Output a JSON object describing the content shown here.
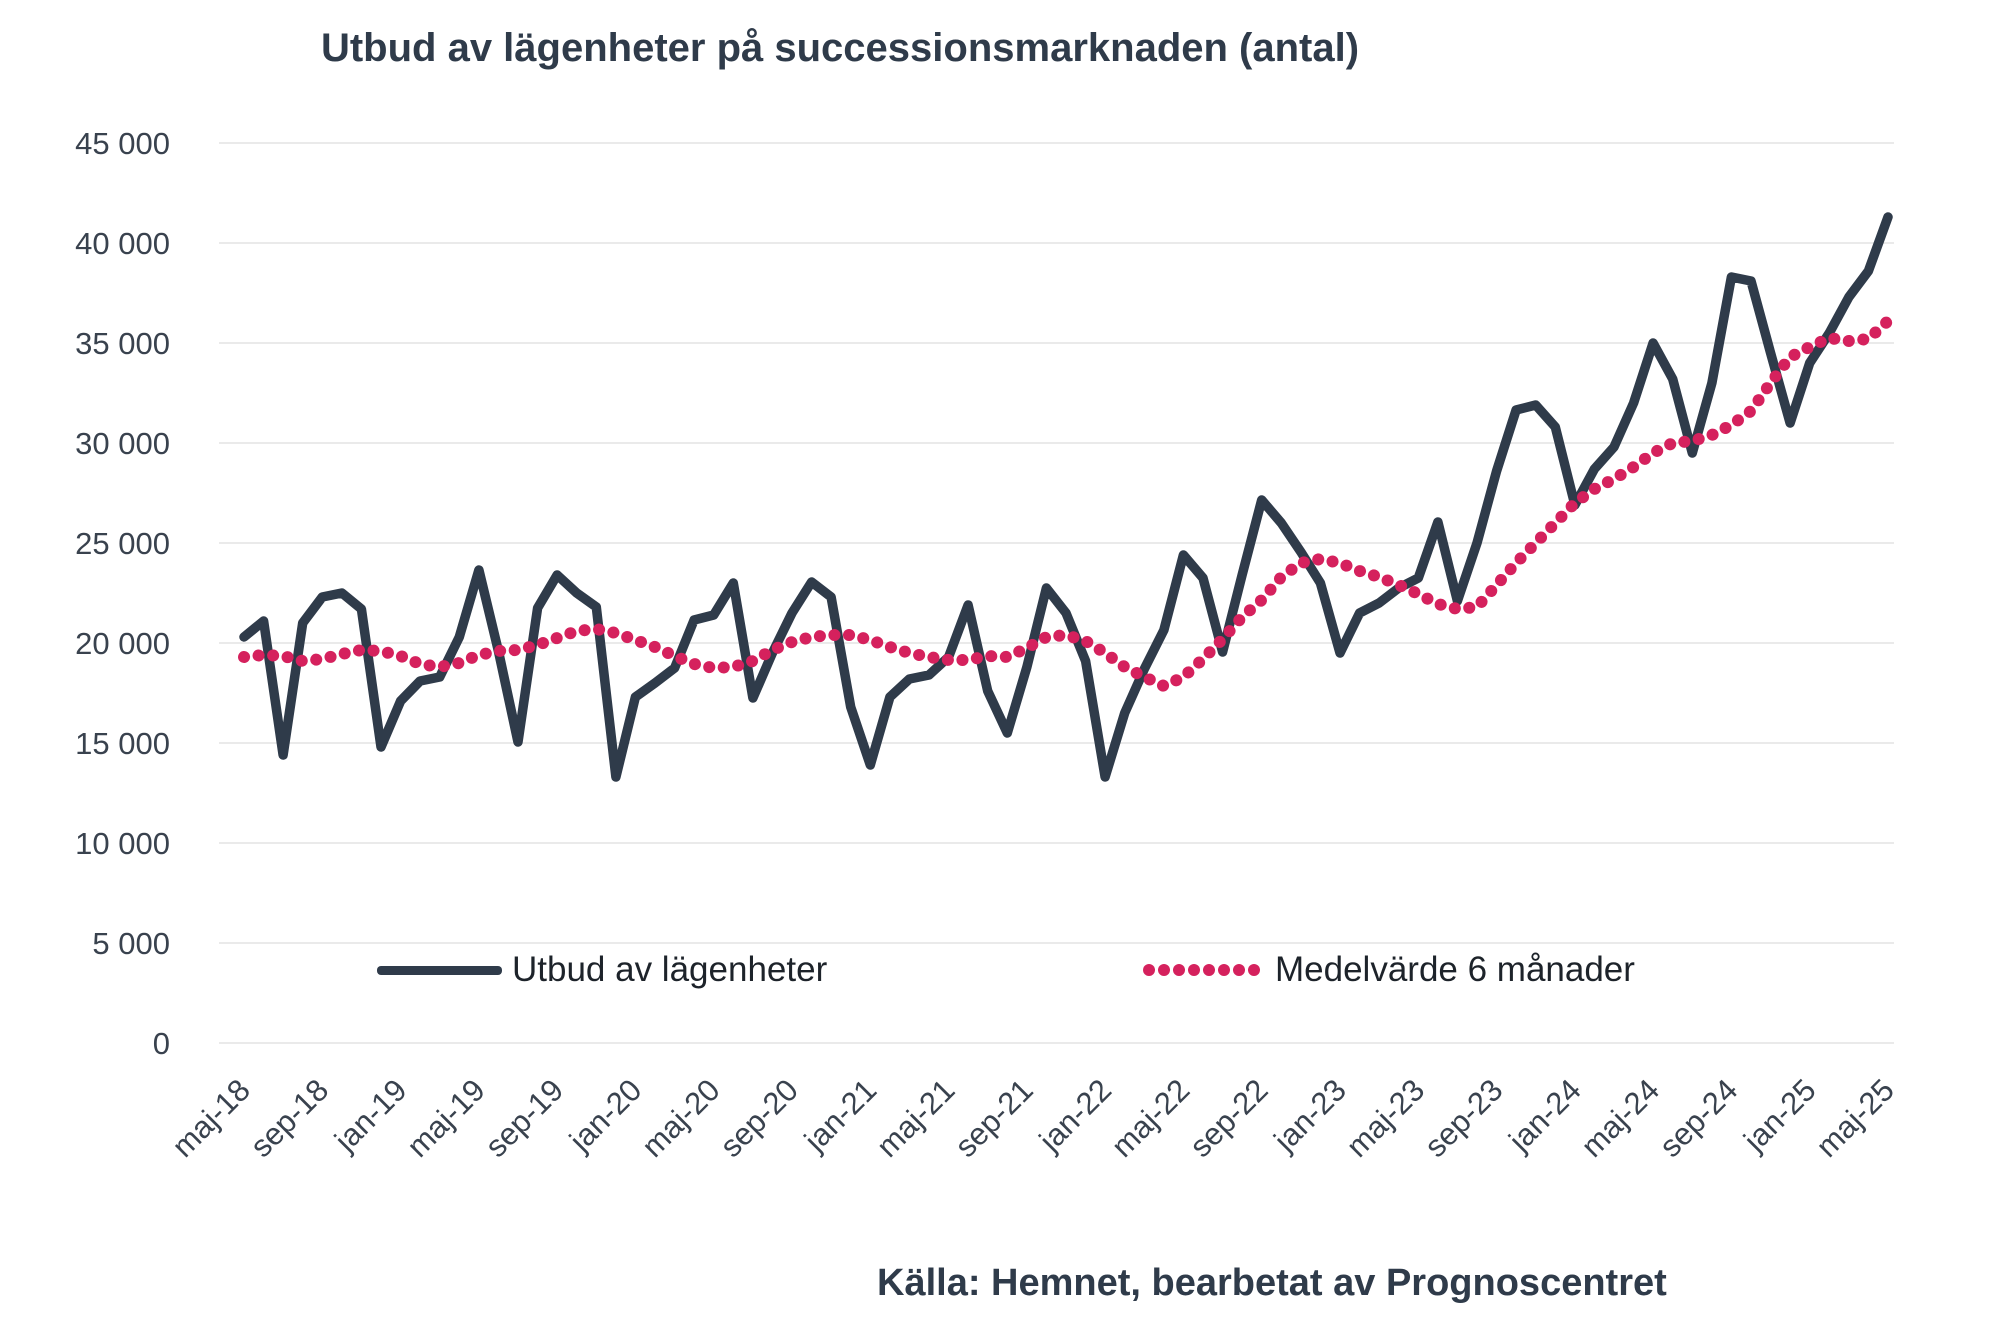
{
  "title": "Utbud av lägenheter på successionsmarknaden (antal)",
  "source": "Källa: Hemnet, bearbetat av Prognoscentret",
  "legend": [
    {
      "label": "Utbud av lägenheter",
      "color": "#2F3B4A",
      "style": "solid"
    },
    {
      "label": "Medelvärde 6 månader",
      "color": "#D5215D",
      "style": "dotted"
    }
  ],
  "colors": {
    "navy": "#2F3B4A",
    "pink": "#D5215D",
    "grid": "#EAEAEA",
    "axis_text": "#39424E",
    "background": "#FFFFFF"
  },
  "chart_data": {
    "type": "line",
    "x_unit": "month",
    "x_start": "maj-18",
    "x_end": "maj-25",
    "ylim": [
      0,
      45000
    ],
    "ytick_step": 5000,
    "ytick_labels": [
      "0",
      "5 000",
      "10 000",
      "15 000",
      "20 000",
      "25 000",
      "30 000",
      "35 000",
      "40 000",
      "45 000"
    ],
    "grid": "horizontal-only",
    "legend_position": "inside-bottom",
    "xticks": [
      {
        "i": 0,
        "label": "maj-18"
      },
      {
        "i": 4,
        "label": "sep-18"
      },
      {
        "i": 8,
        "label": "jan-19"
      },
      {
        "i": 12,
        "label": "maj-19"
      },
      {
        "i": 16,
        "label": "sep-19"
      },
      {
        "i": 20,
        "label": "jan-20"
      },
      {
        "i": 24,
        "label": "maj-20"
      },
      {
        "i": 28,
        "label": "sep-20"
      },
      {
        "i": 32,
        "label": "jan-21"
      },
      {
        "i": 36,
        "label": "maj-21"
      },
      {
        "i": 40,
        "label": "sep-21"
      },
      {
        "i": 44,
        "label": "jan-22"
      },
      {
        "i": 48,
        "label": "maj-22"
      },
      {
        "i": 52,
        "label": "sep-22"
      },
      {
        "i": 56,
        "label": "jan-23"
      },
      {
        "i": 60,
        "label": "maj-23"
      },
      {
        "i": 64,
        "label": "sep-23"
      },
      {
        "i": 68,
        "label": "jan-24"
      },
      {
        "i": 72,
        "label": "maj-24"
      },
      {
        "i": 76,
        "label": "sep-24"
      },
      {
        "i": 80,
        "label": "jan-25"
      },
      {
        "i": 84,
        "label": "maj-25"
      }
    ],
    "series": [
      {
        "name": "Utbud av lägenheter",
        "color": "#2F3B4A",
        "style": "solid",
        "values": [
          20300,
          21100,
          14400,
          21000,
          22300,
          22500,
          21700,
          14800,
          17100,
          18100,
          18300,
          20300,
          23650,
          19600,
          15050,
          21750,
          23400,
          22500,
          21800,
          13300,
          17300,
          18000,
          18750,
          21150,
          21400,
          23000,
          17250,
          19500,
          21500,
          23050,
          22300,
          16800,
          13900,
          17300,
          18200,
          18400,
          19300,
          21900,
          17600,
          15500,
          18800,
          22750,
          21500,
          19100,
          13300,
          16500,
          18700,
          20650,
          24400,
          23250,
          19550,
          23400,
          27150,
          26000,
          24550,
          23000,
          19500,
          21500,
          22000,
          22750,
          23250,
          26050,
          22100,
          25000,
          28600,
          31650,
          31900,
          30800,
          26900,
          28700,
          29800,
          32000,
          35000,
          33200,
          29500,
          33000,
          38300,
          38100,
          34500,
          31000,
          34000,
          35500,
          37300,
          38600,
          41300
        ]
      },
      {
        "name": "Medelvärde 6 månader",
        "color": "#D5215D",
        "style": "dotted",
        "values": [
          19300,
          19400,
          19350,
          19100,
          19200,
          19450,
          19650,
          19600,
          19350,
          18950,
          18800,
          19000,
          19400,
          19600,
          19650,
          19900,
          20250,
          20600,
          20700,
          20500,
          20150,
          19800,
          19350,
          18950,
          18750,
          18800,
          19100,
          19650,
          20050,
          20300,
          20400,
          20400,
          20150,
          19800,
          19500,
          19300,
          19150,
          19150,
          19350,
          19300,
          19750,
          20300,
          20400,
          20100,
          19500,
          18800,
          18300,
          17850,
          18300,
          19200,
          20200,
          21300,
          22150,
          23300,
          24000,
          24200,
          24000,
          23600,
          23300,
          22900,
          22450,
          21950,
          21700,
          21800,
          22900,
          24000,
          25000,
          26000,
          27000,
          27700,
          28200,
          28800,
          29500,
          30000,
          30100,
          30400,
          30900,
          31600,
          33000,
          34300,
          34800,
          35250,
          35100,
          35200,
          36100
        ]
      }
    ]
  }
}
